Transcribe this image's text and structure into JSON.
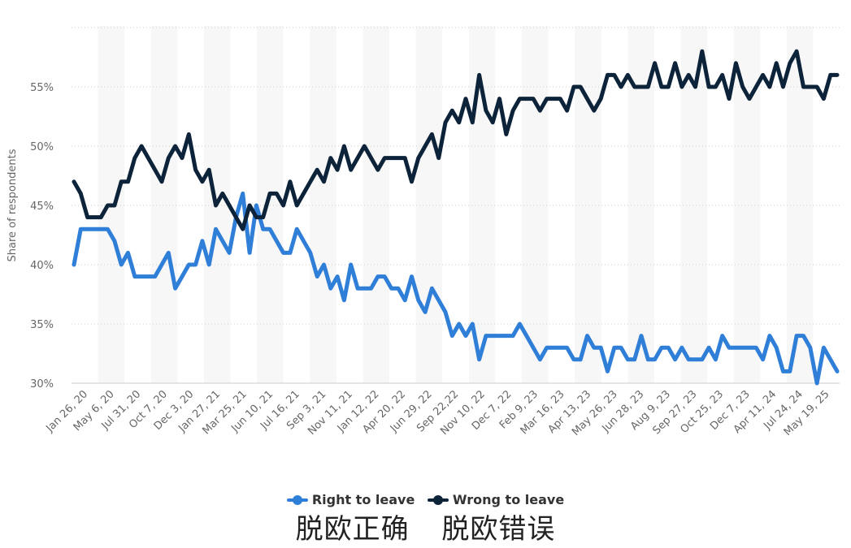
{
  "chart_data": {
    "type": "line",
    "ylabel": "Share of respondents",
    "yticks": [
      "30%",
      "35%",
      "40%",
      "45%",
      "50%",
      "55%"
    ],
    "ylim": [
      29.5,
      60
    ],
    "grid": true,
    "legend_position": "bottom",
    "x_tick_labels": [
      "Jan 26, 20",
      "May 6, 20",
      "Jul 31, 20",
      "Oct 7, 20",
      "Dec 3, 20",
      "Jan 27, 21",
      "Mar 25, 21",
      "Jun 10, 21",
      "Jul 16, 21",
      "Sep 3, 21",
      "Nov 11, 21",
      "Jan 12, 22",
      "Apr 20, 22",
      "Jun 29, 22",
      "Sep 22,22",
      "Nov 10, 22",
      "Dec 7, 22",
      "Feb 9, 23",
      "Mar 16, 23",
      "Apr 13, 23",
      "May 26, 23",
      "Jun 28, 23",
      "Aug 9, 23",
      "Sep 27, 23",
      "Oct 25, 23",
      "Dec 7, 23",
      "Apr 11, 24",
      "Jul 24, 24",
      "May 19, 25"
    ],
    "series": [
      {
        "name": "Right to leave",
        "color": "#2f7ed8",
        "values": [
          40,
          43,
          43,
          43,
          43,
          43,
          42,
          40,
          41,
          39,
          39,
          39,
          39,
          40,
          41,
          38,
          39,
          40,
          40,
          42,
          40,
          43,
          42,
          41,
          44,
          46,
          41,
          45,
          43,
          43,
          42,
          41,
          41,
          43,
          42,
          41,
          39,
          40,
          38,
          39,
          37,
          40,
          38,
          38,
          38,
          39,
          39,
          38,
          38,
          37,
          39,
          37,
          36,
          38,
          37,
          36,
          34,
          35,
          34,
          35,
          32,
          34,
          34,
          34,
          34,
          34,
          35,
          34,
          33,
          32,
          33,
          33,
          33,
          33,
          32,
          32,
          34,
          33,
          33,
          31,
          33,
          33,
          32,
          32,
          34,
          32,
          32,
          33,
          33,
          32,
          33,
          32,
          32,
          32,
          33,
          32,
          34,
          33,
          33,
          33,
          33,
          33,
          32,
          34,
          33,
          31,
          31,
          34,
          34,
          33,
          30,
          33,
          32,
          31
        ]
      },
      {
        "name": "Wrong to leave",
        "color": "#0d233a",
        "values": [
          47,
          46,
          44,
          44,
          44,
          45,
          45,
          47,
          47,
          49,
          50,
          49,
          48,
          47,
          49,
          50,
          49,
          51,
          48,
          47,
          48,
          45,
          46,
          45,
          44,
          43,
          45,
          44,
          44,
          46,
          46,
          45,
          47,
          45,
          46,
          47,
          48,
          47,
          49,
          48,
          50,
          48,
          49,
          50,
          49,
          48,
          49,
          49,
          49,
          49,
          47,
          49,
          50,
          51,
          49,
          52,
          53,
          52,
          54,
          52,
          56,
          53,
          52,
          54,
          51,
          53,
          54,
          54,
          54,
          53,
          54,
          54,
          54,
          53,
          55,
          55,
          54,
          53,
          54,
          56,
          56,
          55,
          56,
          55,
          55,
          55,
          57,
          55,
          55,
          57,
          55,
          56,
          55,
          58,
          55,
          55,
          56,
          54,
          57,
          55,
          54,
          55,
          56,
          55,
          57,
          55,
          57,
          58,
          55,
          55,
          55,
          54,
          56,
          56
        ]
      }
    ]
  },
  "legend": {
    "right_to_leave": "Right to leave",
    "wrong_to_leave": "Wrong to leave"
  },
  "caption": {
    "left": "脱欧正确",
    "right": "脱欧错误"
  }
}
